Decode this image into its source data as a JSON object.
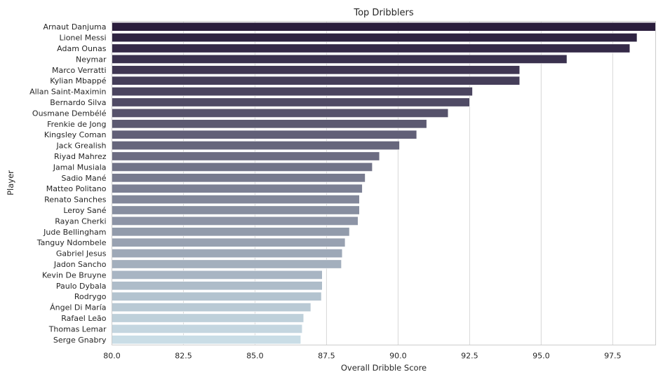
{
  "chart_data": {
    "type": "bar",
    "orientation": "horizontal",
    "title": "Top Dribblers",
    "xlabel": "Overall Dribble Score",
    "ylabel": "Player",
    "xlim": [
      80.0,
      99.0
    ],
    "xticks": [
      "80.0",
      "82.5",
      "85.0",
      "87.5",
      "90.0",
      "92.5",
      "95.0",
      "97.5"
    ],
    "grid": true,
    "palette": "ch:s=.25,rot=-.25 (dark indigo to pale blue)",
    "color_start": "#2a1d3c",
    "color_end": "#c9dde6",
    "categories": [
      "Arnaut Danjuma",
      "Lionel Messi",
      "Adam Ounas",
      "Neymar",
      "Marco Verratti",
      "Kylian Mbappé",
      "Allan Saint-Maximin",
      "Bernardo Silva",
      "Ousmane Dembélé",
      "Frenkie de Jong",
      "Kingsley Coman",
      "Jack Grealish",
      "Riyad Mahrez",
      "Jamal Musiala",
      "Sadio Mané",
      "Matteo Politano",
      "Renato Sanches",
      "Leroy Sané",
      "Rayan Cherki",
      "Jude Bellingham",
      "Tanguy Ndombele",
      "Gabriel Jesus",
      "Jadon Sancho",
      "Kevin De Bruyne",
      "Paulo Dybala",
      "Rodrygo",
      "Ángel Di María",
      "Rafael Leão",
      "Thomas Lemar",
      "Serge Gnabry"
    ],
    "values": [
      99.0,
      98.35,
      98.1,
      95.9,
      94.25,
      94.25,
      92.6,
      92.5,
      91.75,
      91.0,
      90.65,
      90.05,
      89.35,
      89.1,
      88.85,
      88.75,
      88.65,
      88.65,
      88.6,
      88.3,
      88.15,
      88.05,
      88.02,
      87.35,
      87.35,
      87.32,
      86.95,
      86.7,
      86.65,
      86.6
    ]
  }
}
